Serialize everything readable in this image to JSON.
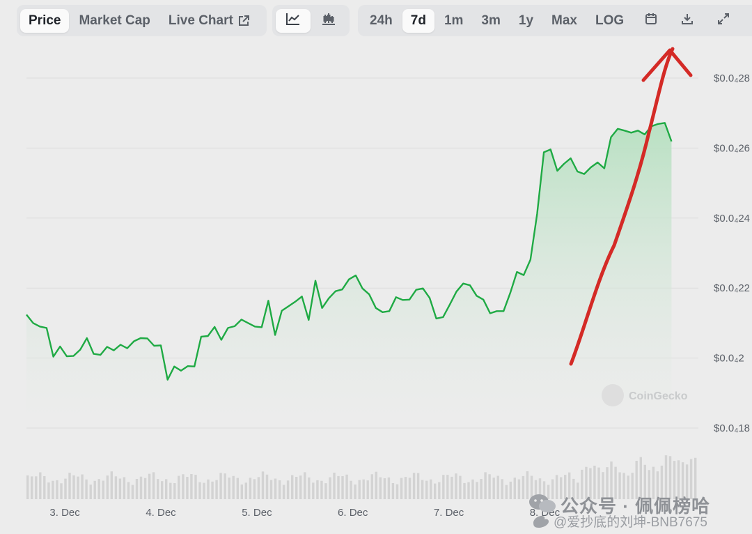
{
  "toolbar": {
    "metric_tabs": [
      {
        "label": "Price",
        "active": true
      },
      {
        "label": "Market Cap",
        "active": false
      },
      {
        "label": "Live Chart",
        "active": false
      }
    ],
    "chart_type_icons": [
      "line-chart-icon",
      "candlestick-chart-icon"
    ],
    "ranges": [
      {
        "label": "24h",
        "active": false
      },
      {
        "label": "7d",
        "active": true
      },
      {
        "label": "1m",
        "active": false
      },
      {
        "label": "3m",
        "active": false
      },
      {
        "label": "1y",
        "active": false
      },
      {
        "label": "Max",
        "active": false
      },
      {
        "label": "LOG",
        "active": false
      }
    ],
    "tool_icons": [
      "calendar-icon",
      "download-icon",
      "fullscreen-icon"
    ]
  },
  "colors": {
    "line": "#1faa44",
    "fill_top": "#b6e0c0",
    "annotation_arrow": "#d42a26",
    "grid": "#dcdcdc"
  },
  "watermark": "CoinGecko",
  "overlay": {
    "account": "公众号 · 佩佩榜哈",
    "handle": "@爱抄底的刘坤-BNB7675"
  },
  "chart_data": {
    "type": "area",
    "y_tick_labels": [
      "$0.0₄28",
      "$0.0₄26",
      "$0.0₄24",
      "$0.0₄22",
      "$0.0₄2",
      "$0.0₄18"
    ],
    "y_ticks": [
      2.8e-05,
      2.6e-05,
      2.4e-05,
      2.2e-05,
      2e-05,
      1.8e-05
    ],
    "ylim": [
      1.8e-05,
      2.8e-05
    ],
    "x_tick_labels": [
      "3. Dec",
      "4. Dec",
      "5. Dec",
      "6. Dec",
      "7. Dec",
      "8. Dec"
    ],
    "xlim": [
      2.6,
      9.6
    ],
    "grid": true,
    "series": [
      {
        "values": [
          [
            2.6,
            21.2
          ],
          [
            2.67,
            20.96
          ],
          [
            2.74,
            20.86
          ],
          [
            2.81,
            20.82
          ],
          [
            2.88,
            20.0
          ],
          [
            2.95,
            20.29
          ],
          [
            3.02,
            20.01
          ],
          [
            3.09,
            20.02
          ],
          [
            3.16,
            20.2
          ],
          [
            3.23,
            20.53
          ],
          [
            3.3,
            20.08
          ],
          [
            3.37,
            20.05
          ],
          [
            3.44,
            20.28
          ],
          [
            3.51,
            20.18
          ],
          [
            3.58,
            20.34
          ],
          [
            3.65,
            20.24
          ],
          [
            3.72,
            20.44
          ],
          [
            3.79,
            20.53
          ],
          [
            3.86,
            20.52
          ],
          [
            3.93,
            20.31
          ],
          [
            4.0,
            20.32
          ],
          [
            4.07,
            19.34
          ],
          [
            4.14,
            19.72
          ],
          [
            4.21,
            19.6
          ],
          [
            4.28,
            19.73
          ],
          [
            4.35,
            19.72
          ],
          [
            4.42,
            20.57
          ],
          [
            4.49,
            20.59
          ],
          [
            4.56,
            20.85
          ],
          [
            4.63,
            20.48
          ],
          [
            4.7,
            20.82
          ],
          [
            4.77,
            20.87
          ],
          [
            4.84,
            21.06
          ],
          [
            4.91,
            20.96
          ],
          [
            4.98,
            20.86
          ],
          [
            5.05,
            20.84
          ],
          [
            5.12,
            21.6
          ],
          [
            5.19,
            20.62
          ],
          [
            5.26,
            21.31
          ],
          [
            5.33,
            21.44
          ],
          [
            5.4,
            21.57
          ],
          [
            5.47,
            21.72
          ],
          [
            5.54,
            21.05
          ],
          [
            5.61,
            22.17
          ],
          [
            5.68,
            21.39
          ],
          [
            5.75,
            21.67
          ],
          [
            5.82,
            21.87
          ],
          [
            5.89,
            21.92
          ],
          [
            5.96,
            22.21
          ],
          [
            6.03,
            22.32
          ],
          [
            6.1,
            21.95
          ],
          [
            6.17,
            21.78
          ],
          [
            6.24,
            21.39
          ],
          [
            6.31,
            21.27
          ],
          [
            6.38,
            21.3
          ],
          [
            6.45,
            21.7
          ],
          [
            6.52,
            21.62
          ],
          [
            6.59,
            21.63
          ],
          [
            6.66,
            21.91
          ],
          [
            6.73,
            21.95
          ],
          [
            6.8,
            21.68
          ],
          [
            6.87,
            21.09
          ],
          [
            6.94,
            21.13
          ],
          [
            7.01,
            21.49
          ],
          [
            7.08,
            21.86
          ],
          [
            7.15,
            22.09
          ],
          [
            7.22,
            22.04
          ],
          [
            7.29,
            21.74
          ],
          [
            7.36,
            21.63
          ],
          [
            7.43,
            21.24
          ],
          [
            7.5,
            21.3
          ],
          [
            7.57,
            21.3
          ],
          [
            7.64,
            21.82
          ],
          [
            7.71,
            22.42
          ],
          [
            7.78,
            22.33
          ],
          [
            7.85,
            22.77
          ],
          [
            7.92,
            24.08
          ],
          [
            7.99,
            25.84
          ],
          [
            8.06,
            25.92
          ],
          [
            8.13,
            25.31
          ],
          [
            8.2,
            25.51
          ],
          [
            8.27,
            25.67
          ],
          [
            8.34,
            25.29
          ],
          [
            8.41,
            25.22
          ],
          [
            8.48,
            25.41
          ],
          [
            8.55,
            25.55
          ],
          [
            8.62,
            25.38
          ],
          [
            8.69,
            26.27
          ],
          [
            8.76,
            26.51
          ],
          [
            8.83,
            26.46
          ],
          [
            8.9,
            26.4
          ],
          [
            8.97,
            26.46
          ],
          [
            9.04,
            26.35
          ],
          [
            9.11,
            26.58
          ],
          [
            9.18,
            26.65
          ],
          [
            9.25,
            26.68
          ],
          [
            9.32,
            26.15
          ]
        ],
        "value_unit": "1e-6 USD"
      }
    ],
    "volume_bars": true
  }
}
